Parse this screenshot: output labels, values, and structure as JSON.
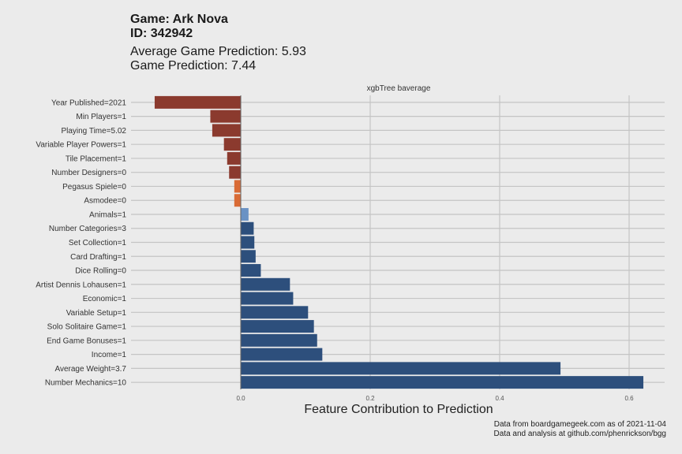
{
  "header": {
    "game_line": "Game: Ark Nova",
    "id_line": "ID: 342942",
    "avg_prediction": "Average Game Prediction: 5.93",
    "game_prediction": "Game Prediction: 7.44"
  },
  "caption": {
    "line1": "Data from boardgamegeek.com as of 2021-11-04",
    "line2": "Data and analysis at github.com/phenrickson/bgg"
  },
  "chart_data": {
    "type": "bar",
    "orientation": "horizontal",
    "facet_label": "xgbTree baverage",
    "xlabel": "Feature Contribution to Prediction",
    "ylabel": "",
    "xlim": [
      -0.17,
      0.64
    ],
    "x_ticks": [
      0.0,
      0.2,
      0.4,
      0.6
    ],
    "x_tick_labels": [
      "0.0",
      "0.2",
      "0.4",
      "0.6"
    ],
    "grid": true,
    "colors": {
      "strong_negative": "#8b3a2e",
      "weak_negative": "#d96b35",
      "weak_positive": "#6a92c4",
      "strong_positive": "#2d4f7c",
      "background": "#ebebeb",
      "gridline": "#c4c4c4"
    },
    "categories": [
      "Year Published=2021",
      "Min Players=1",
      "Playing Time=5.02",
      "Variable Player Powers=1",
      "Tile Placement=1",
      "Number Designers=0",
      "Pegasus Spiele=0",
      "Asmodee=0",
      "Animals=1",
      "Number Categories=3",
      "Set Collection=1",
      "Card Drafting=1",
      "Dice Rolling=0",
      "Artist Dennis Lohausen=1",
      "Economic=1",
      "Variable Setup=1",
      "Solo Solitaire Game=1",
      "End Game Bonuses=1",
      "Income=1",
      "Average Weight=3.7",
      "Number Mechanics=10"
    ],
    "values": [
      -0.133,
      -0.047,
      -0.044,
      -0.026,
      -0.021,
      -0.018,
      -0.01,
      -0.01,
      0.012,
      0.02,
      0.021,
      0.023,
      0.031,
      0.076,
      0.081,
      0.104,
      0.113,
      0.118,
      0.126,
      0.494,
      0.622
    ],
    "color_groups": [
      "strong_negative",
      "strong_negative",
      "strong_negative",
      "strong_negative",
      "strong_negative",
      "strong_negative",
      "weak_negative",
      "weak_negative",
      "weak_positive",
      "strong_positive",
      "strong_positive",
      "strong_positive",
      "strong_positive",
      "strong_positive",
      "strong_positive",
      "strong_positive",
      "strong_positive",
      "strong_positive",
      "strong_positive",
      "strong_positive",
      "strong_positive"
    ]
  }
}
